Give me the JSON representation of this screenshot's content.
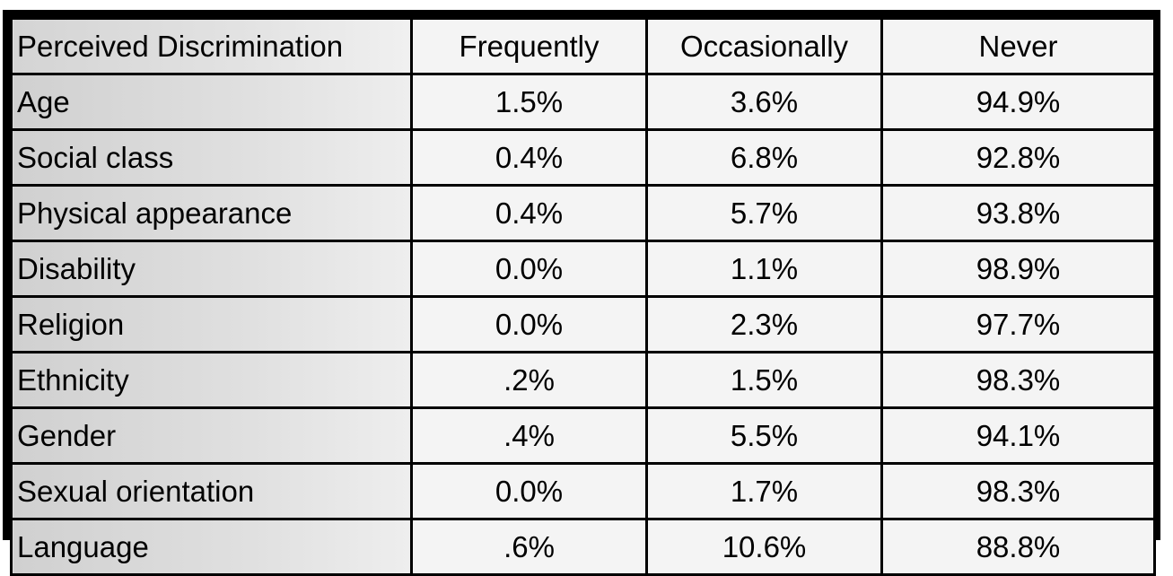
{
  "table": {
    "columns": [
      "Perceived Discrimination",
      "Frequently",
      "Occasionally",
      "Never"
    ],
    "rows": [
      {
        "label": "Age",
        "frequently": "1.5%",
        "occasionally": "3.6%",
        "never": "94.9%"
      },
      {
        "label": "Social class",
        "frequently": "0.4%",
        "occasionally": "6.8%",
        "never": "92.8%"
      },
      {
        "label": "Physical appearance",
        "frequently": "0.4%",
        "occasionally": "5.7%",
        "never": "93.8%"
      },
      {
        "label": "Disability",
        "frequently": "0.0%",
        "occasionally": "1.1%",
        "never": "98.9%"
      },
      {
        "label": "Religion",
        "frequently": "0.0%",
        "occasionally": "2.3%",
        "never": "97.7%"
      },
      {
        "label": "Ethnicity",
        "frequently": ".2%",
        "occasionally": "1.5%",
        "never": "98.3%"
      },
      {
        "label": "Gender",
        "frequently": ".4%",
        "occasionally": "5.5%",
        "never": "94.1%"
      },
      {
        "label": "Sexual orientation",
        "frequently": "0.0%",
        "occasionally": "1.7%",
        "never": "98.3%"
      },
      {
        "label": "Language",
        "frequently": ".6%",
        "occasionally": "10.6%",
        "never": "88.8%"
      }
    ]
  },
  "colors": {
    "border": "#000000",
    "cell_background": "#f4f4f4",
    "label_background": "#d8d8d8"
  }
}
